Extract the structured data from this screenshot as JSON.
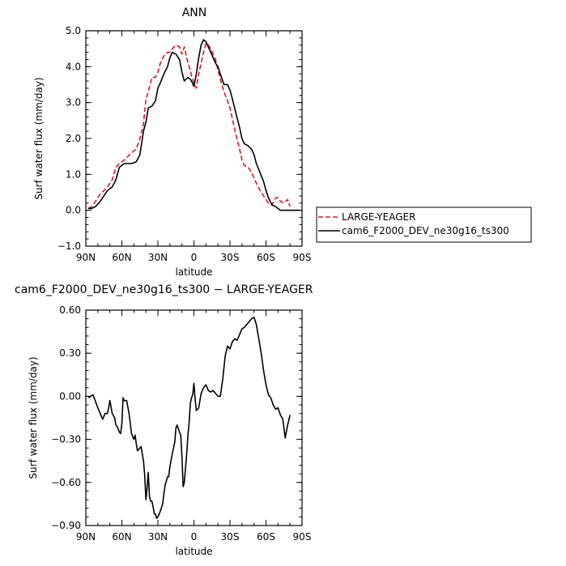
{
  "chart_data": [
    {
      "type": "line",
      "title": "ANN",
      "xlabel": "latitude",
      "ylabel": "Surf water flux (mm/day)",
      "xlim": [
        90,
        -90
      ],
      "ylim": [
        -1.0,
        5.0
      ],
      "xticks": [
        90,
        60,
        30,
        0,
        -30,
        -60,
        -90
      ],
      "xtick_labels": [
        "90N",
        "60N",
        "30N",
        "0",
        "30S",
        "60S",
        "90S"
      ],
      "yticks": [
        -1.0,
        0.0,
        1.0,
        2.0,
        3.0,
        4.0,
        5.0
      ],
      "ytick_labels": [
        "−1.0",
        "0.0",
        "1.0",
        "2.0",
        "3.0",
        "4.0",
        "5.0"
      ],
      "legend_position": "right",
      "series": [
        {
          "name": "LARGE-YEAGER",
          "color": "#e8141c",
          "dash": "dashed",
          "x": [
            88,
            85,
            82,
            78,
            75,
            72,
            68,
            65,
            62,
            58,
            55,
            52,
            48,
            45,
            42,
            40,
            38,
            35,
            32,
            30,
            28,
            25,
            22,
            20,
            18,
            15,
            12,
            10,
            8,
            5,
            3,
            2,
            0,
            -2,
            -4,
            -6,
            -8,
            -10,
            -12,
            -14,
            -16,
            -18,
            -20,
            -22,
            -25,
            -28,
            -30,
            -32,
            -35,
            -38,
            -40,
            -42,
            -45,
            -48,
            -50,
            -52,
            -55,
            -58,
            -60,
            -62,
            -65,
            -68,
            -70,
            -72,
            -75,
            -78,
            -80
          ],
          "y": [
            0.05,
            0.1,
            0.25,
            0.45,
            0.55,
            0.65,
            0.85,
            1.2,
            1.3,
            1.4,
            1.5,
            1.6,
            1.7,
            2.0,
            2.4,
            3.1,
            3.3,
            3.7,
            3.7,
            3.85,
            4.1,
            4.3,
            4.4,
            4.4,
            4.5,
            4.6,
            4.55,
            4.35,
            4.55,
            4.1,
            3.9,
            3.75,
            3.55,
            3.4,
            3.8,
            4.1,
            4.4,
            4.65,
            4.6,
            4.5,
            4.35,
            4.2,
            3.9,
            3.65,
            3.3,
            3.05,
            2.85,
            2.55,
            2.1,
            1.7,
            1.4,
            1.25,
            1.2,
            1.05,
            0.9,
            0.75,
            0.55,
            0.4,
            0.3,
            0.2,
            0.15,
            0.35,
            0.35,
            0.25,
            0.2,
            0.3,
            0.1
          ]
        },
        {
          "name": "cam6_F2000_DEV_ne30g16_ts300",
          "color": "#000000",
          "dash": "solid",
          "x": [
            88,
            85,
            82,
            78,
            75,
            72,
            68,
            65,
            62,
            58,
            55,
            52,
            48,
            45,
            42,
            40,
            38,
            35,
            32,
            30,
            28,
            25,
            22,
            20,
            18,
            15,
            13,
            12,
            10,
            8,
            5,
            3,
            2,
            0,
            -2,
            -4,
            -6,
            -8,
            -10,
            -12,
            -14,
            -16,
            -18,
            -20,
            -22,
            -25,
            -28,
            -30,
            -32,
            -35,
            -38,
            -40,
            -42,
            -45,
            -48,
            -50,
            -52,
            -55,
            -58,
            -60,
            -62,
            -65,
            -68,
            -70,
            -72,
            -75,
            -78,
            -80,
            -85,
            -88
          ],
          "y": [
            0.05,
            0.05,
            0.1,
            0.25,
            0.4,
            0.55,
            0.65,
            0.85,
            1.2,
            1.3,
            1.3,
            1.3,
            1.35,
            1.55,
            2.2,
            2.45,
            2.85,
            2.9,
            3.05,
            3.4,
            3.55,
            3.8,
            4.0,
            4.25,
            4.4,
            4.35,
            4.25,
            4.2,
            3.85,
            3.6,
            3.7,
            3.65,
            3.6,
            3.45,
            3.8,
            4.25,
            4.6,
            4.75,
            4.7,
            4.55,
            4.4,
            4.25,
            4.1,
            4.0,
            3.8,
            3.5,
            3.5,
            3.35,
            3.1,
            2.7,
            2.3,
            2.0,
            1.85,
            1.8,
            1.7,
            1.55,
            1.3,
            1.05,
            0.8,
            0.55,
            0.35,
            0.15,
            0.1,
            0.05,
            0.0,
            0.0,
            0.0,
            0.0,
            0.0,
            0.0
          ]
        }
      ]
    },
    {
      "type": "line",
      "title": "cam6_F2000_DEV_ne30g16_ts300 − LARGE-YEAGER",
      "xlabel": "latitude",
      "ylabel": "Surf water flux (mm/day)",
      "xlim": [
        90,
        -90
      ],
      "ylim": [
        -0.9,
        0.6
      ],
      "xticks": [
        90,
        60,
        30,
        0,
        -30,
        -60,
        -90
      ],
      "xtick_labels": [
        "90N",
        "60N",
        "30N",
        "0",
        "30S",
        "60S",
        "90S"
      ],
      "yticks": [
        -0.9,
        -0.6,
        -0.3,
        0.0,
        0.3,
        0.6
      ],
      "ytick_labels": [
        "−0.90",
        "−0.60",
        "−0.30",
        "0.00",
        "0.30",
        "0.60"
      ],
      "series": [
        {
          "name": "",
          "color": "#000000",
          "dash": "solid",
          "x": [
            88,
            84,
            80,
            78,
            76,
            74,
            72,
            71,
            70,
            68,
            66,
            65,
            64,
            62,
            61,
            60,
            59,
            58,
            56,
            54,
            53,
            52,
            50,
            49,
            48,
            47,
            46,
            44,
            43,
            42,
            41,
            40,
            39,
            38,
            37,
            36,
            35,
            34,
            33,
            32,
            31,
            30,
            28,
            26,
            25,
            24,
            22,
            21,
            20,
            18,
            16,
            15,
            14,
            12,
            11,
            10,
            9,
            8,
            6,
            5,
            4,
            3,
            2,
            1,
            0,
            -1,
            -2,
            -4,
            -6,
            -8,
            -10,
            -12,
            -14,
            -16,
            -18,
            -20,
            -22,
            -24,
            -26,
            -28,
            -30,
            -32,
            -34,
            -36,
            -38,
            -40,
            -42,
            -44,
            -46,
            -48,
            -50,
            -52,
            -54,
            -56,
            -58,
            -60,
            -62,
            -64,
            -66,
            -68,
            -70,
            -72,
            -74,
            -76,
            -78,
            -80
          ],
          "y": [
            -0.01,
            0.01,
            -0.08,
            -0.12,
            -0.16,
            -0.12,
            -0.12,
            -0.08,
            -0.03,
            -0.12,
            -0.15,
            -0.2,
            -0.21,
            -0.25,
            -0.26,
            -0.19,
            -0.01,
            -0.03,
            -0.03,
            -0.12,
            -0.19,
            -0.26,
            -0.3,
            -0.27,
            -0.33,
            -0.38,
            -0.37,
            -0.35,
            -0.4,
            -0.45,
            -0.55,
            -0.72,
            -0.64,
            -0.53,
            -0.7,
            -0.73,
            -0.73,
            -0.77,
            -0.82,
            -0.82,
            -0.85,
            -0.84,
            -0.8,
            -0.75,
            -0.68,
            -0.62,
            -0.56,
            -0.56,
            -0.49,
            -0.4,
            -0.32,
            -0.22,
            -0.2,
            -0.25,
            -0.27,
            -0.42,
            -0.63,
            -0.6,
            -0.4,
            -0.27,
            -0.18,
            -0.05,
            -0.01,
            0.01,
            0.09,
            -0.02,
            -0.1,
            -0.08,
            0.02,
            0.06,
            0.08,
            0.04,
            0.03,
            0.04,
            0.02,
            0.0,
            0.0,
            0.12,
            0.28,
            0.35,
            0.33,
            0.38,
            0.4,
            0.39,
            0.43,
            0.47,
            0.48,
            0.5,
            0.52,
            0.54,
            0.55,
            0.5,
            0.4,
            0.3,
            0.18,
            0.08,
            0.01,
            -0.01,
            -0.06,
            -0.09,
            -0.08,
            -0.13,
            -0.16,
            -0.29,
            -0.2,
            -0.13
          ]
        }
      ]
    }
  ]
}
